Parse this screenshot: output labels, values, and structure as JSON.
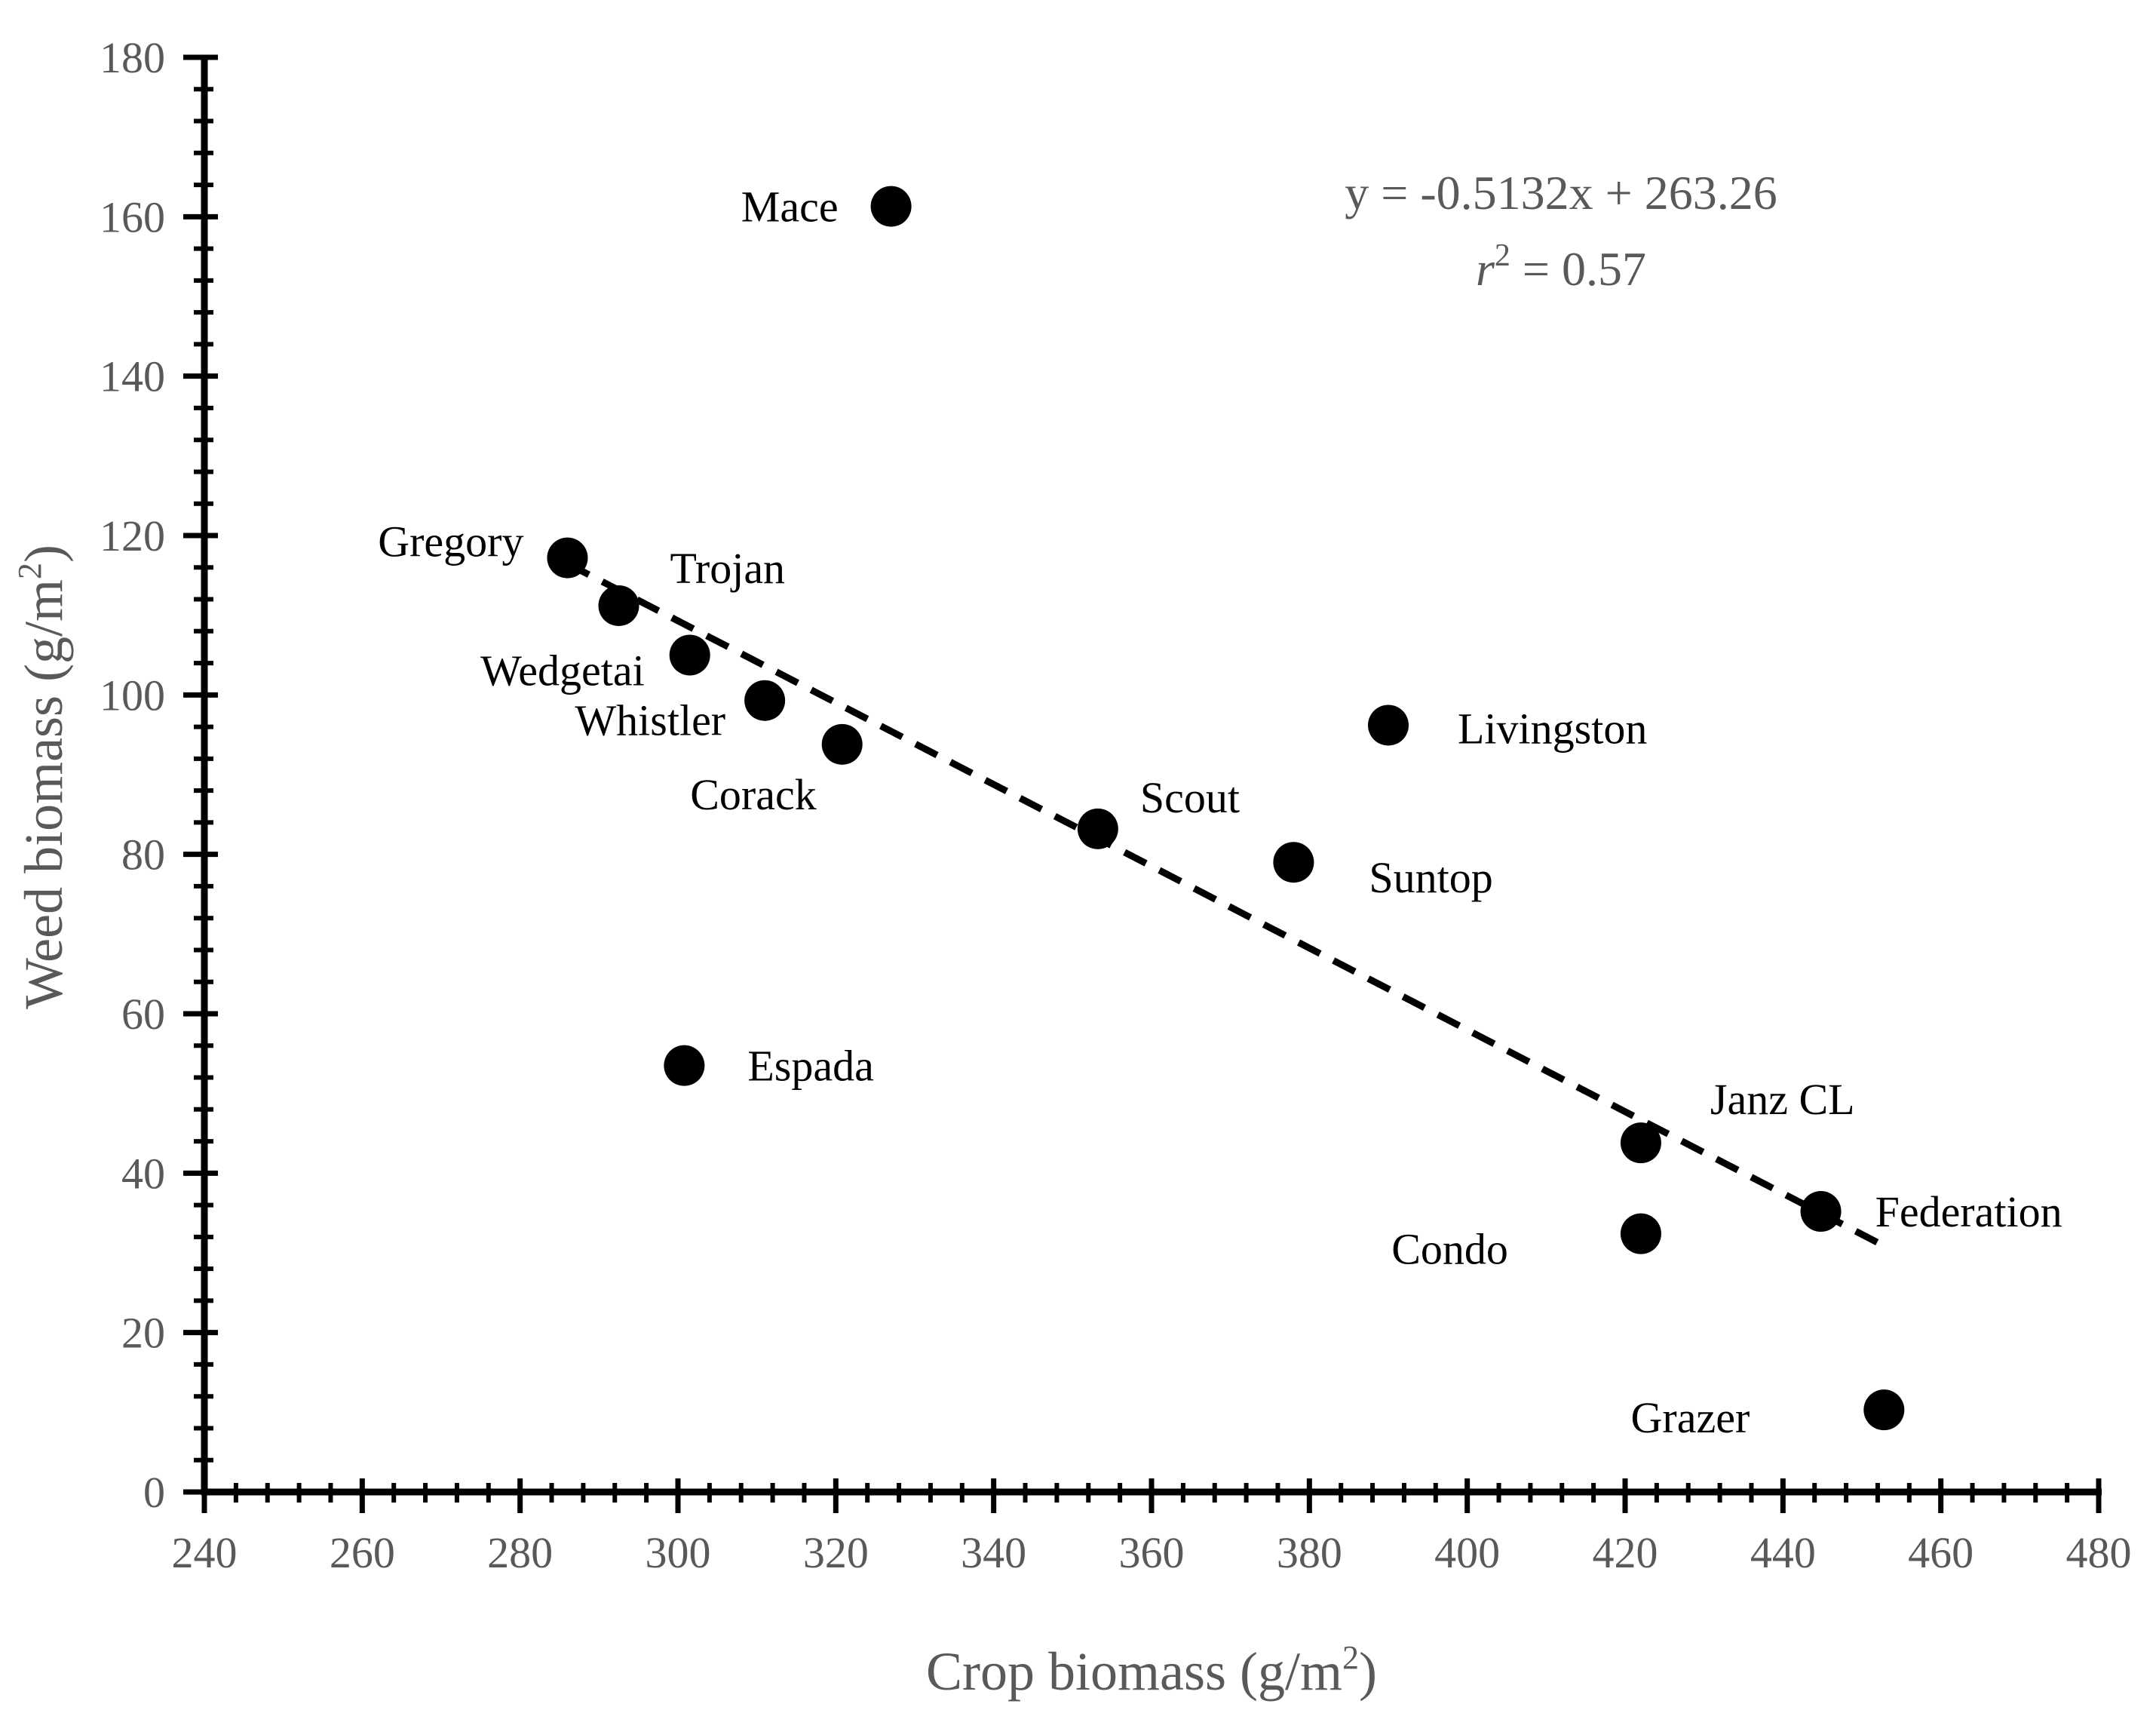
{
  "chart_data": {
    "type": "scatter",
    "title": "",
    "xlabel": "Crop biomass (g/m",
    "xlabel_sup": "2",
    "xlabel_end": ")",
    "ylabel": "Weed biomass (g/m",
    "ylabel_sup": "2",
    "ylabel_end": ")",
    "xlim": [
      240,
      480
    ],
    "ylim": [
      0,
      180
    ],
    "xticks": [
      240,
      260,
      280,
      300,
      320,
      340,
      360,
      380,
      400,
      420,
      440,
      460,
      480
    ],
    "yticks": [
      0,
      20,
      40,
      60,
      80,
      100,
      120,
      140,
      160,
      180
    ],
    "points": [
      {
        "name": "Mace",
        "x": 327,
        "y": 161.3
      },
      {
        "name": "Gregory",
        "x": 286,
        "y": 117.2
      },
      {
        "name": "Trojan",
        "x": 292.5,
        "y": 111.2
      },
      {
        "name": "Wedgetai",
        "x": 301.5,
        "y": 105
      },
      {
        "name": "Whistler",
        "x": 311,
        "y": 99.3
      },
      {
        "name": "Corack",
        "x": 320.8,
        "y": 93.8
      },
      {
        "name": "Scout",
        "x": 353.2,
        "y": 83.2
      },
      {
        "name": "Suntop",
        "x": 378,
        "y": 79
      },
      {
        "name": "Livingston",
        "x": 390,
        "y": 96.2
      },
      {
        "name": "Espada",
        "x": 300.8,
        "y": 53.5
      },
      {
        "name": "Janz CL",
        "x": 422,
        "y": 43.8
      },
      {
        "name": "Condo",
        "x": 422,
        "y": 32.4
      },
      {
        "name": "Federation",
        "x": 444.8,
        "y": 35.2
      },
      {
        "name": "Grazer",
        "x": 452.8,
        "y": 10.3
      }
    ],
    "trendline": {
      "slope": -0.5132,
      "intercept": 263.26,
      "x_range": [
        286,
        452
      ],
      "style": "dashed",
      "equation_label": "y = -0.5132x + 263.26",
      "r2_label_symbol": "r",
      "r2_label_sup": "2",
      "r2_label_value": " = 0.57"
    },
    "colors": {
      "points": "#000000",
      "axis": "#000000",
      "text": "#595959",
      "trendline": "#000000"
    }
  }
}
